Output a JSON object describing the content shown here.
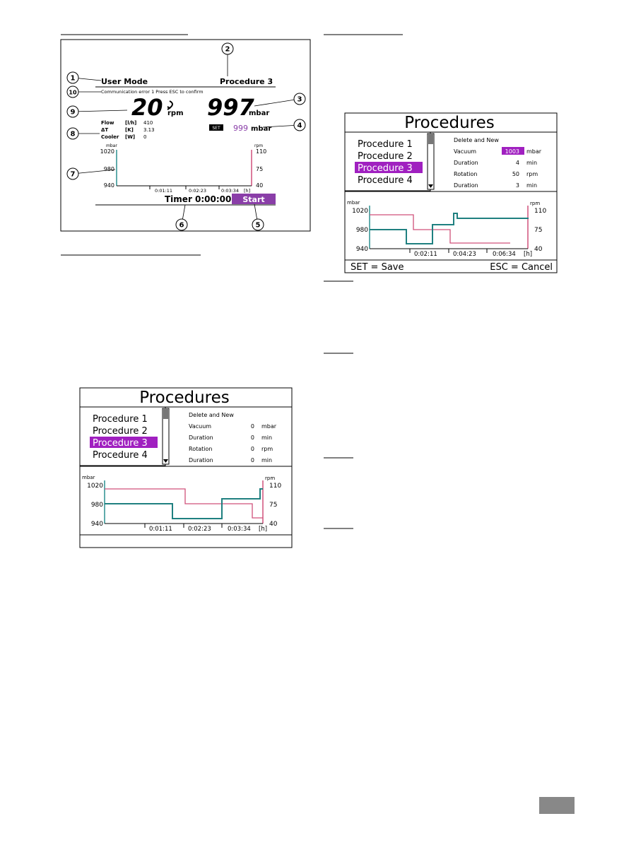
{
  "screen1": {
    "mode": "User Mode",
    "procedure": "Procedure 3",
    "message": "Communication error 1 Press ESC to confirm",
    "speed": 20,
    "speed_unit": "rpm",
    "pressure": 997,
    "pressure_unit": "mbar",
    "readings": [
      {
        "label": "Flow",
        "unit": "[l/h]",
        "value": 410
      },
      {
        "label": "ΔT",
        "unit": "[K]",
        "value": 3.13
      },
      {
        "label": "Cooler",
        "unit": "[W]",
        "value": 0
      }
    ],
    "set_label": "SET",
    "setpoint": 999,
    "setpoint_unit": "mbar",
    "left_axis": {
      "unit": "mbar",
      "ticks": [
        1020,
        980,
        940
      ]
    },
    "right_axis": {
      "unit": "rpm",
      "ticks": [
        110,
        75,
        40
      ]
    },
    "times": [
      "0:01:11",
      "0:02:23",
      "0:03:34",
      "[h]"
    ],
    "timer": "Timer 0:00:00",
    "start": "Start",
    "callouts": [
      "1",
      "2",
      "10",
      "3",
      "9",
      "4",
      "8",
      "7",
      "6",
      "5"
    ]
  },
  "screen2": {
    "title": "Procedures",
    "list": [
      "Procedure 1",
      "Procedure 2",
      "Procedure 3",
      "Procedure 4"
    ],
    "heading": "Delete and New",
    "params": [
      {
        "label": "Vacuum",
        "value": 0,
        "unit": "mbar"
      },
      {
        "label": "Duration",
        "value": 0,
        "unit": "min"
      },
      {
        "label": "Rotation",
        "value": 0,
        "unit": "rpm"
      },
      {
        "label": "Duration",
        "value": 0,
        "unit": "min"
      }
    ],
    "left_axis": {
      "unit": "mbar",
      "ticks": [
        1020,
        980,
        940
      ]
    },
    "right_axis": {
      "unit": "rpm",
      "ticks": [
        110,
        75,
        40
      ]
    },
    "times": [
      "0:01:11",
      "0:02:23",
      "0:03:34",
      "[h]"
    ]
  },
  "screen3": {
    "title": "Procedures",
    "list": [
      "Procedure 1",
      "Procedure 2",
      "Procedure 3",
      "Procedure 4"
    ],
    "heading": "Delete and New",
    "params": [
      {
        "label": "Vacuum",
        "value": 1003,
        "unit": "mbar"
      },
      {
        "label": "Duration",
        "value": 4,
        "unit": "min"
      },
      {
        "label": "Rotation",
        "value": 50,
        "unit": "rpm"
      },
      {
        "label": "Duration",
        "value": 3,
        "unit": "min"
      }
    ],
    "left_axis": {
      "unit": "mbar",
      "ticks": [
        1020,
        980,
        940
      ]
    },
    "right_axis": {
      "unit": "rpm",
      "ticks": [
        110,
        75,
        40
      ]
    },
    "times": [
      "0:02:11",
      "0:04:23",
      "0:06:34",
      "[h]"
    ],
    "footer": {
      "save": "SET = Save",
      "cancel": "ESC = Cancel"
    }
  }
}
